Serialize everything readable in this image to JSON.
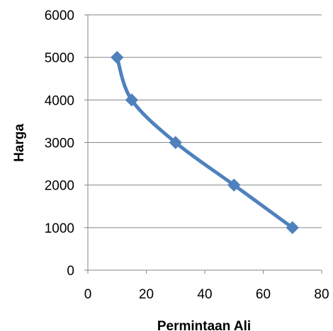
{
  "chart_data": {
    "type": "line",
    "title": "",
    "xlabel": "Permintaan Ali",
    "ylabel": "Harga",
    "xlim": [
      0,
      80
    ],
    "ylim": [
      0,
      6000
    ],
    "x_ticks": [
      "0",
      "20",
      "40",
      "60",
      "80"
    ],
    "y_ticks": [
      "0",
      "1000",
      "2000",
      "3000",
      "4000",
      "5000",
      "6000"
    ],
    "grid": "horizontal",
    "legend": "none",
    "marker": "diamond",
    "line_style": "smoothed",
    "series": [
      {
        "color": "#4f81bd",
        "points": [
          {
            "x": 10,
            "y": 5000
          },
          {
            "x": 15,
            "y": 4000
          },
          {
            "x": 30,
            "y": 3000
          },
          {
            "x": 50,
            "y": 2000
          },
          {
            "x": 70,
            "y": 1000
          }
        ]
      }
    ]
  }
}
